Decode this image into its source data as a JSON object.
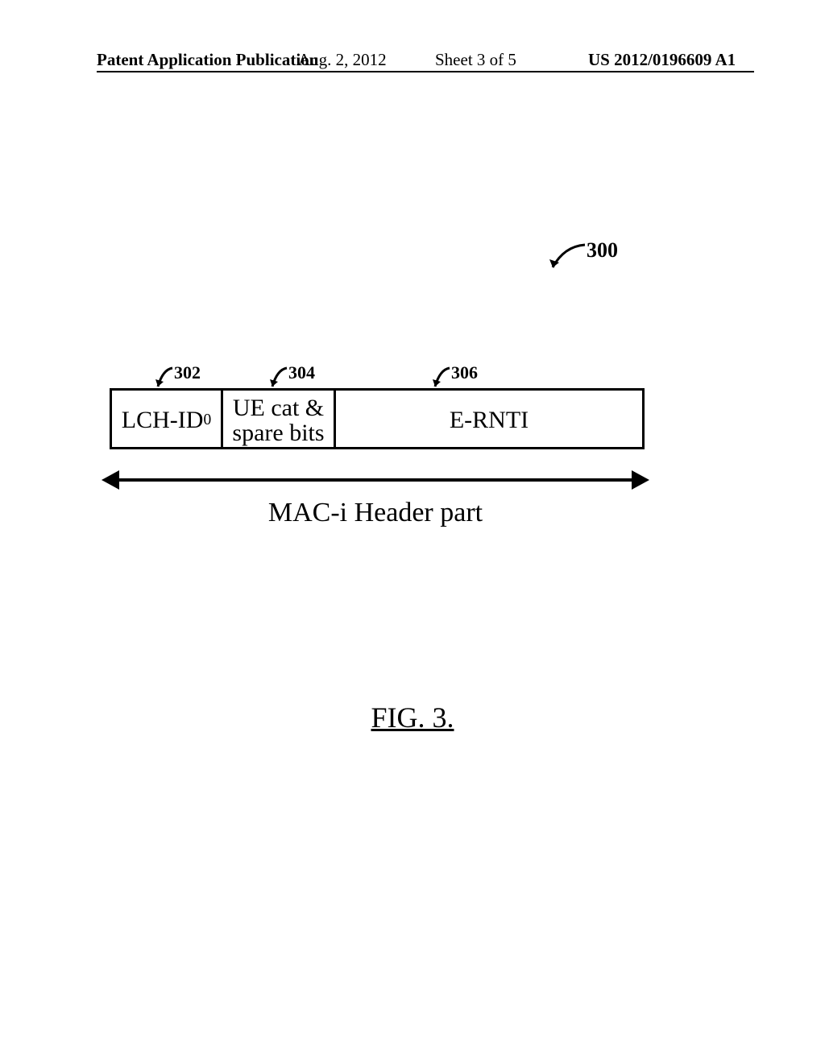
{
  "header": {
    "left": "Patent Application Publication",
    "date": "Aug. 2, 2012",
    "sheet": "Sheet 3 of 5",
    "docnum": "US 2012/0196609 A1"
  },
  "figure": {
    "overall_ref": "300",
    "fields": [
      {
        "ref": "302",
        "label_html": "LCH-ID<sub>0</sub>"
      },
      {
        "ref": "304",
        "label_html": "UE cat &amp;<br>spare bits"
      },
      {
        "ref": "306",
        "label_html": "E-RNTI"
      }
    ],
    "extent_label": "MAC-i Header part",
    "figure_label": "FIG. 3."
  },
  "style": {
    "stroke": "#000000",
    "background": "#ffffff"
  }
}
